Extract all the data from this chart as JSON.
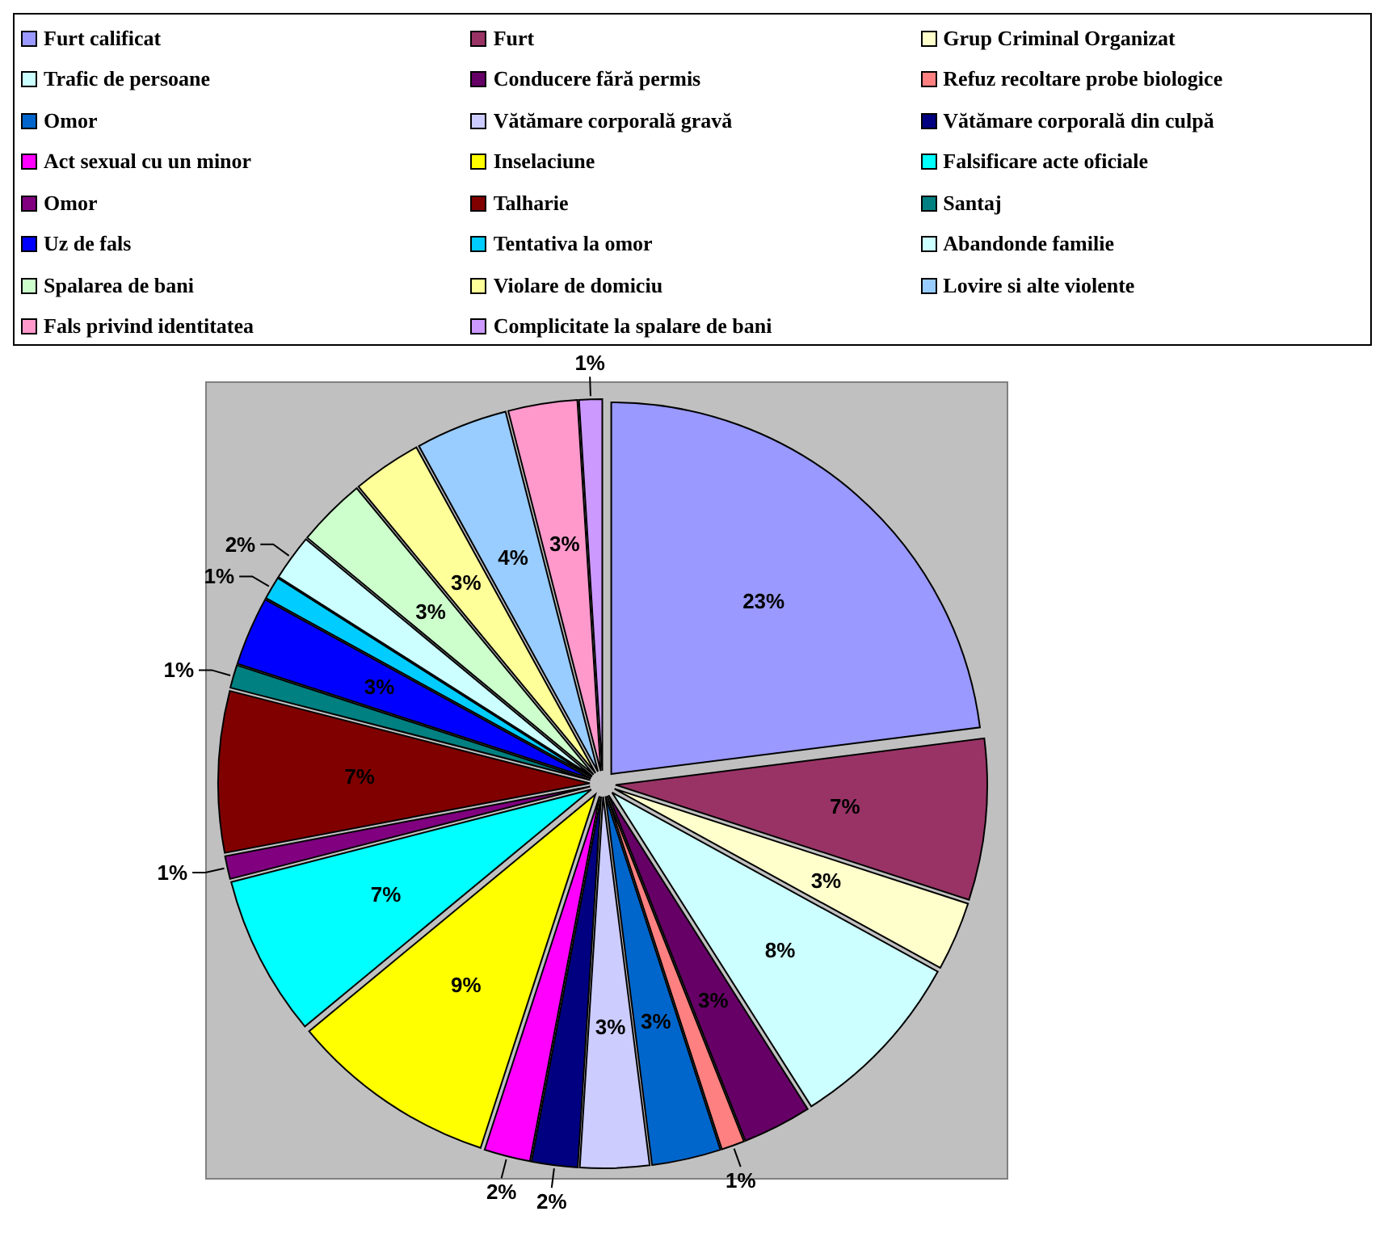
{
  "chart_data": {
    "type": "pie",
    "legend": "top",
    "categories": [
      "Furt calificat",
      "Furt",
      "Grup Criminal Organizat",
      "Trafic de persoane",
      "Conducere fără permis",
      "Refuz recoltare probe biologice",
      "Omor",
      "Vătămare corporală gravă",
      "Vătămare corporală din culpă",
      "Act sexual cu un minor",
      "Inselaciune",
      "Falsificare acte oficiale",
      "Omor",
      "Talharie",
      "Santaj",
      "Uz de fals",
      "Tentativa la omor",
      "Abandonde familie",
      "Spalarea de bani",
      "Violare de domiciu",
      "Lovire si alte violente",
      "Fals privind identitatea",
      "Complicitate la spalare de bani"
    ],
    "values": [
      23,
      7,
      3,
      8,
      3,
      1,
      3,
      3,
      2,
      2,
      9,
      7,
      1,
      7,
      1,
      3,
      1,
      2,
      3,
      3,
      4,
      3,
      1
    ],
    "value_labels": [
      "23%",
      "7%",
      "3%",
      "8%",
      "3%",
      "1%",
      "3%",
      "3%",
      "2%",
      "2%",
      "9%",
      "7%",
      "1%",
      "7%",
      "1%",
      "3%",
      "1%",
      "2%",
      "3%",
      "3%",
      "4%",
      "3%",
      "1%"
    ],
    "colors": [
      "#9999ff",
      "#993366",
      "#ffffcc",
      "#ccffff",
      "#660066",
      "#ff8080",
      "#0066cc",
      "#ccccff",
      "#000080",
      "#ff00ff",
      "#ffff00",
      "#00ffff",
      "#800080",
      "#800000",
      "#008080",
      "#0000ff",
      "#00ccff",
      "#ccffff",
      "#ccffcc",
      "#ffff99",
      "#99ccff",
      "#ff99cc",
      "#cc99ff"
    ]
  }
}
